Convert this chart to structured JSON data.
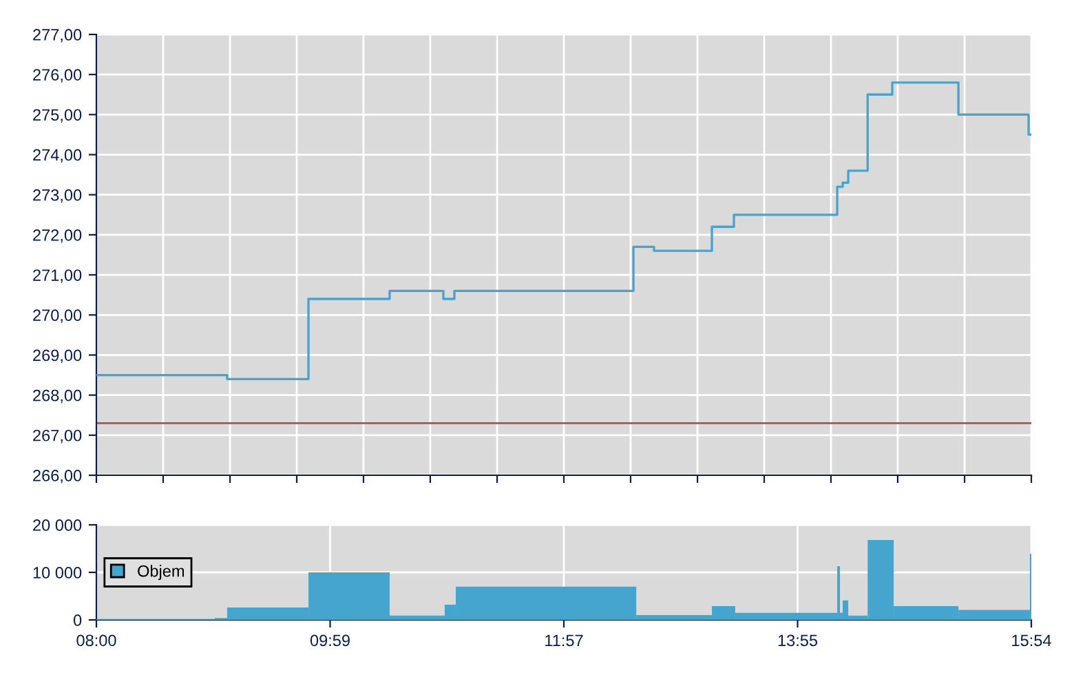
{
  "chart_data": [
    {
      "type": "step",
      "tick_labels": "y",
      "grid": true,
      "line_style": "solid",
      "series": [
        {
          "color": "#4aa3cc",
          "x": [
            8.0,
            9.105,
            9.792,
            10.478,
            10.932,
            11.025,
            12.538,
            12.712,
            13.201,
            13.387,
            14.26,
            14.306,
            14.353,
            14.517,
            14.725,
            15.284,
            15.877,
            15.9
          ],
          "values": [
            268.5,
            268.4,
            270.4,
            270.6,
            270.4,
            270.6,
            271.7,
            271.6,
            272.2,
            272.5,
            273.2,
            273.3,
            273.6,
            275.5,
            275.8,
            275.0,
            274.5,
            274.5
          ]
        }
      ],
      "xlim": [
        8.0,
        15.9
      ],
      "xticks": [
        {
          "value": 8.0,
          "label": null
        },
        {
          "value": 8.564,
          "label": null
        },
        {
          "value": 9.129,
          "label": null
        },
        {
          "value": 9.693,
          "label": null
        },
        {
          "value": 10.257,
          "label": null
        },
        {
          "value": 10.821,
          "label": null
        },
        {
          "value": 11.386,
          "label": null
        },
        {
          "value": 11.95,
          "label": null
        },
        {
          "value": 12.514,
          "label": null
        },
        {
          "value": 13.079,
          "label": null
        },
        {
          "value": 13.643,
          "label": null
        },
        {
          "value": 14.207,
          "label": null
        },
        {
          "value": 14.771,
          "label": null
        },
        {
          "value": 15.336,
          "label": null
        },
        {
          "value": 15.9,
          "label": null
        }
      ],
      "ylim": [
        266,
        277
      ],
      "yticks": [
        {
          "value": 266,
          "label": "266,00"
        },
        {
          "value": 267,
          "label": "267,00"
        },
        {
          "value": 268,
          "label": "268,00"
        },
        {
          "value": 269,
          "label": "269,00"
        },
        {
          "value": 270,
          "label": "270,00"
        },
        {
          "value": 271,
          "label": "271,00"
        },
        {
          "value": 272,
          "label": "272,00"
        },
        {
          "value": 273,
          "label": "273,00"
        },
        {
          "value": 274,
          "label": "274,00"
        },
        {
          "value": 275,
          "label": "275,00"
        },
        {
          "value": 276,
          "label": "276,00"
        },
        {
          "value": 277,
          "label": "277,00"
        }
      ],
      "ref_lines": [
        {
          "axis": "y",
          "value": 267.3,
          "color": "#b05050"
        }
      ]
    },
    {
      "type": "histogram",
      "grid": true,
      "legend": "left",
      "bins": [
        8.0,
        9.0,
        9.105,
        9.792,
        10.478,
        10.943,
        11.037,
        12.562,
        13.201,
        13.398,
        14.26,
        14.283,
        14.306,
        14.353,
        14.517,
        14.737,
        15.284,
        15.888,
        15.9
      ],
      "series": [
        {
          "name": "Objem",
          "color": "#46a5ce",
          "values": [
            200,
            400,
            2600,
            10000,
            900,
            3200,
            7000,
            1000,
            2900,
            1500,
            11300,
            1500,
            4100,
            900,
            16800,
            2900,
            2100,
            13900
          ]
        }
      ],
      "xlim": [
        8.0,
        15.9
      ],
      "xticks": [
        {
          "value": 8.0,
          "label": "08:00"
        },
        {
          "value": 9.975,
          "label": "09:59"
        },
        {
          "value": 11.95,
          "label": "11:57"
        },
        {
          "value": 13.925,
          "label": "13:55"
        },
        {
          "value": 15.9,
          "label": "15:54"
        }
      ],
      "ylim": [
        0,
        20000
      ],
      "yticks": [
        0,
        {
          "value": 10000,
          "label": "10 000"
        },
        {
          "value": 20000,
          "label": "20 000"
        }
      ]
    }
  ]
}
